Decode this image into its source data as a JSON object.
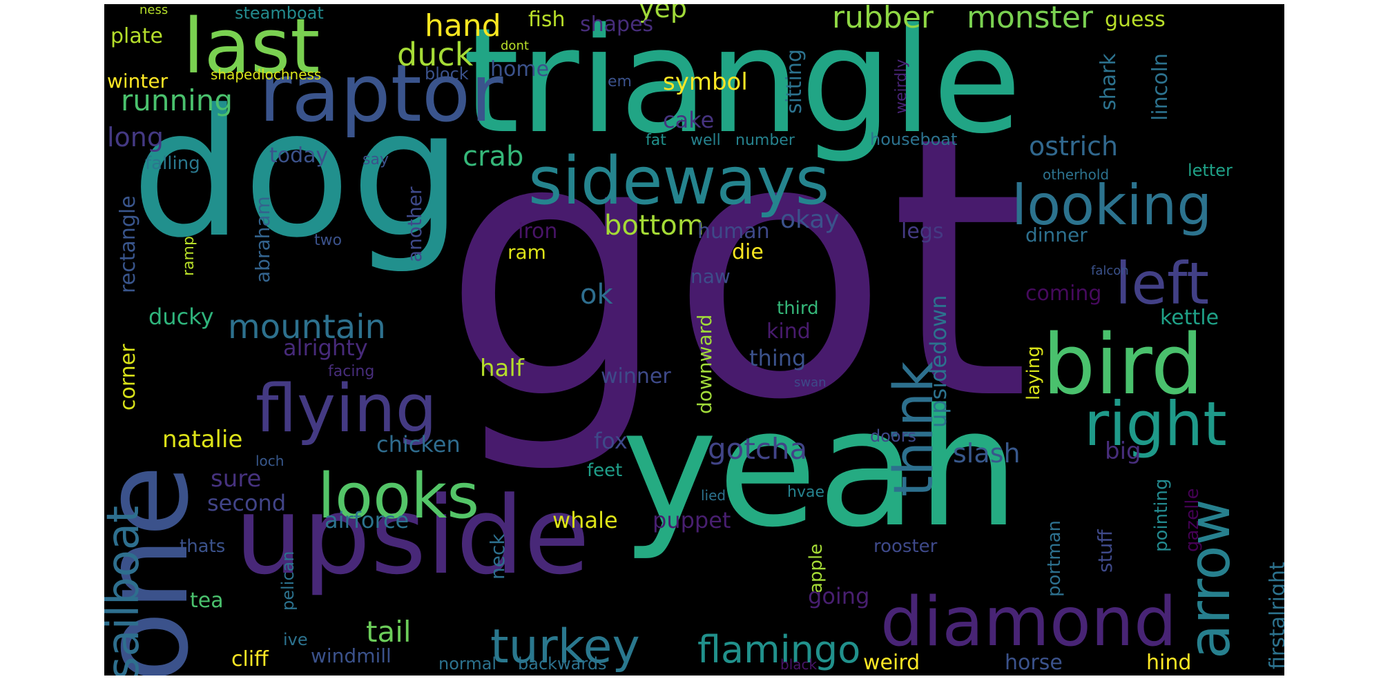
{
  "words": [
    {
      "text": "got",
      "color": "#481b6d"
    },
    {
      "text": "triangle",
      "color": "#21a585"
    },
    {
      "text": "dog",
      "color": "#21908d"
    },
    {
      "text": "yeah",
      "color": "#25ab82"
    },
    {
      "text": "one",
      "color": "#3b528b"
    },
    {
      "text": "upside",
      "color": "#482878"
    },
    {
      "text": "raptor",
      "color": "#3a548c"
    },
    {
      "text": "sideways",
      "color": "#25848e"
    },
    {
      "text": "last",
      "color": "#7ad151"
    },
    {
      "text": "bird",
      "color": "#4ac16d"
    },
    {
      "text": "diamond",
      "color": "#482475"
    },
    {
      "text": "flying",
      "color": "#443a83"
    },
    {
      "text": "looks",
      "color": "#54c568"
    },
    {
      "text": "looking",
      "color": "#2c738e"
    },
    {
      "text": "right",
      "color": "#1f9a8a"
    },
    {
      "text": "left",
      "color": "#424086"
    },
    {
      "text": "arrow",
      "color": "#27808e"
    },
    {
      "text": "think",
      "color": "#2d708e"
    },
    {
      "text": "sailboat",
      "color": "#2e6f8e"
    },
    {
      "text": "turkey",
      "color": "#2a788e"
    },
    {
      "text": "flamingo",
      "color": "#21918c"
    },
    {
      "text": "mountain",
      "color": "#2d718e"
    },
    {
      "text": "rubber",
      "color": "#8fd744"
    },
    {
      "text": "monster",
      "color": "#7ad151"
    },
    {
      "text": "running",
      "color": "#4ac16d"
    },
    {
      "text": "hand",
      "color": "#f8e621"
    },
    {
      "text": "duck",
      "color": "#a5db36"
    },
    {
      "text": "yep",
      "color": "#a0da39"
    },
    {
      "text": "crab",
      "color": "#35b779"
    },
    {
      "text": "ostrich",
      "color": "#31688e"
    },
    {
      "text": "bottom",
      "color": "#a5db36"
    },
    {
      "text": "okay",
      "color": "#3b528b"
    },
    {
      "text": "ok",
      "color": "#2e6e8e"
    },
    {
      "text": "gotcha",
      "color": "#414487"
    },
    {
      "text": "slash",
      "color": "#38588c"
    },
    {
      "text": "upsidedown",
      "color": "#2c728e"
    },
    {
      "text": "firstalright",
      "color": "#2c728e"
    },
    {
      "text": "tail",
      "color": "#6ccd5a"
    },
    {
      "text": "long",
      "color": "#443983"
    },
    {
      "text": "sure",
      "color": "#46327e"
    },
    {
      "text": "big",
      "color": "#472d7b"
    },
    {
      "text": "natalie",
      "color": "#dde318"
    },
    {
      "text": "chicken",
      "color": "#2f6c8e"
    },
    {
      "text": "fox",
      "color": "#3e4989"
    },
    {
      "text": "whale",
      "color": "#dde318"
    },
    {
      "text": "puppet",
      "color": "#481f70"
    },
    {
      "text": "airforce",
      "color": "#2c738e"
    },
    {
      "text": "second",
      "color": "#414487"
    },
    {
      "text": "ducky",
      "color": "#2fb47c"
    },
    {
      "text": "alrighty",
      "color": "#472a7a"
    },
    {
      "text": "half",
      "color": "#b5de2b"
    },
    {
      "text": "winner",
      "color": "#3e4a89"
    },
    {
      "text": "thing",
      "color": "#3b528b"
    },
    {
      "text": "kind",
      "color": "#481b6d"
    },
    {
      "text": "third",
      "color": "#35b779"
    },
    {
      "text": "coming",
      "color": "#460a5d"
    },
    {
      "text": "kettle",
      "color": "#1fa187"
    },
    {
      "text": "dinner",
      "color": "#2d708e"
    },
    {
      "text": "legs",
      "color": "#443a83"
    },
    {
      "text": "human",
      "color": "#3e4989"
    },
    {
      "text": "iron",
      "color": "#481467"
    },
    {
      "text": "ram",
      "color": "#dde318"
    },
    {
      "text": "die",
      "color": "#f8e621"
    },
    {
      "text": "naw",
      "color": "#3d4d8a"
    },
    {
      "text": "cake",
      "color": "#46337f"
    },
    {
      "text": "symbol",
      "color": "#fde725"
    },
    {
      "text": "home",
      "color": "#3b528b"
    },
    {
      "text": "fish",
      "color": "#b8de29"
    },
    {
      "text": "shapes",
      "color": "#472d7b"
    },
    {
      "text": "guess",
      "color": "#b8de29"
    },
    {
      "text": "plate",
      "color": "#b5de2b"
    },
    {
      "text": "steamboat",
      "color": "#238a8d"
    },
    {
      "text": "winter",
      "color": "#fde725"
    },
    {
      "text": "shapedlochness",
      "color": "#d8e219"
    },
    {
      "text": "block",
      "color": "#3b528b"
    },
    {
      "text": "today",
      "color": "#3b528b"
    },
    {
      "text": "falling",
      "color": "#2a788e"
    },
    {
      "text": "fat",
      "color": "#21918c"
    },
    {
      "text": "well",
      "color": "#26828e"
    },
    {
      "text": "number",
      "color": "#26828e"
    },
    {
      "text": "houseboat",
      "color": "#2c728e"
    },
    {
      "text": "otherhold",
      "color": "#2c728e"
    },
    {
      "text": "letter",
      "color": "#1fa187"
    },
    {
      "text": "say",
      "color": "#3b528b"
    },
    {
      "text": "rectangle",
      "color": "#39558c"
    },
    {
      "text": "abraham",
      "color": "#33638d"
    },
    {
      "text": "another",
      "color": "#3e4989"
    },
    {
      "text": "ramp",
      "color": "#b8de29"
    },
    {
      "text": "two",
      "color": "#3b528b"
    },
    {
      "text": "corner",
      "color": "#d8e219"
    },
    {
      "text": "facing",
      "color": "#472d7b"
    },
    {
      "text": "downward",
      "color": "#a0da39"
    },
    {
      "text": "laying",
      "color": "#d8e219"
    },
    {
      "text": "swan",
      "color": "#3e4989"
    },
    {
      "text": "doors",
      "color": "#3e4989"
    },
    {
      "text": "pointing",
      "color": "#23898e"
    },
    {
      "text": "gazelle",
      "color": "#440154"
    },
    {
      "text": "portman",
      "color": "#2d708e"
    },
    {
      "text": "stuff",
      "color": "#3e4989"
    },
    {
      "text": "feet",
      "color": "#1f9e89"
    },
    {
      "text": "loch",
      "color": "#38588c"
    },
    {
      "text": "lied",
      "color": "#2c728e"
    },
    {
      "text": "hvae",
      "color": "#26828e"
    },
    {
      "text": "neck",
      "color": "#2d708e"
    },
    {
      "text": "apple",
      "color": "#a5db36"
    },
    {
      "text": "pelican",
      "color": "#2c728e"
    },
    {
      "text": "thats",
      "color": "#3b528b"
    },
    {
      "text": "tea",
      "color": "#4ac16d"
    },
    {
      "text": "rooster",
      "color": "#3e4989"
    },
    {
      "text": "going",
      "color": "#481f70"
    },
    {
      "text": "ive",
      "color": "#2c728e"
    },
    {
      "text": "cliff",
      "color": "#fde725"
    },
    {
      "text": "windmill",
      "color": "#3b528b"
    },
    {
      "text": "normal",
      "color": "#2c728e"
    },
    {
      "text": "backwards",
      "color": "#2c728e"
    },
    {
      "text": "black",
      "color": "#481467"
    },
    {
      "text": "weird",
      "color": "#fde725"
    },
    {
      "text": "horse",
      "color": "#3b528b"
    },
    {
      "text": "hind",
      "color": "#fde725"
    },
    {
      "text": "em",
      "color": "#3b528b"
    },
    {
      "text": "dont",
      "color": "#b8de29"
    },
    {
      "text": "ness",
      "color": "#b5de2b"
    },
    {
      "text": "shark",
      "color": "#2c728e"
    },
    {
      "text": "lincoln",
      "color": "#2c728e"
    },
    {
      "text": "weirdly",
      "color": "#482475"
    },
    {
      "text": "sitting",
      "color": "#2c728e"
    },
    {
      "text": "falcon",
      "color": "#3b528b"
    }
  ]
}
